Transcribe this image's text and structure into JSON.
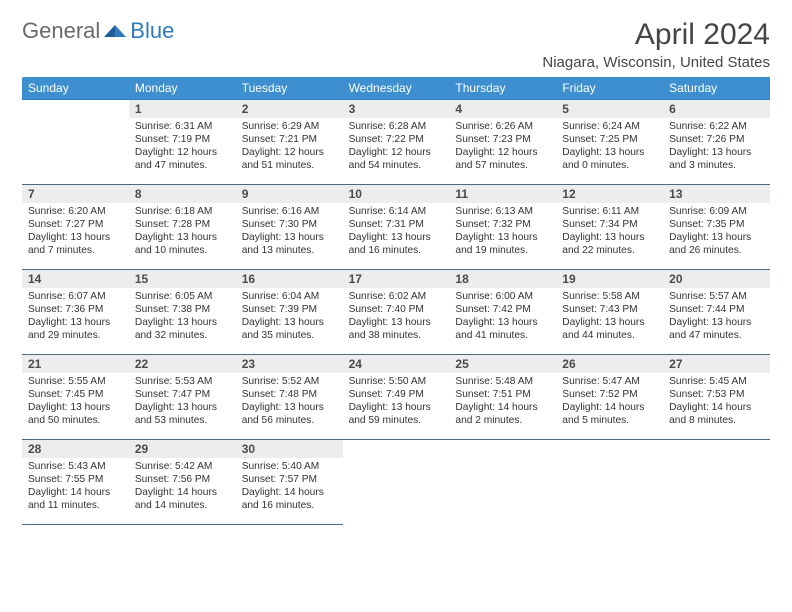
{
  "logo": {
    "word1": "General",
    "word2": "Blue"
  },
  "header": {
    "month": "April 2024",
    "location": "Niagara, Wisconsin, United States"
  },
  "colors": {
    "header_bg": "#3e8fcf",
    "header_text": "#ffffff",
    "border": "#4a6a88",
    "daynum_bg": "#eceded",
    "daynum_text": "#4a4a4a",
    "body_text": "#333333",
    "logo_gray": "#6a6a6a",
    "logo_blue": "#2f7bbf",
    "title_color": "#454545"
  },
  "weekdays": [
    "Sunday",
    "Monday",
    "Tuesday",
    "Wednesday",
    "Thursday",
    "Friday",
    "Saturday"
  ],
  "days": [
    {
      "n": 1,
      "sunrise": "6:31 AM",
      "sunset": "7:19 PM",
      "daylight": "12 hours and 47 minutes."
    },
    {
      "n": 2,
      "sunrise": "6:29 AM",
      "sunset": "7:21 PM",
      "daylight": "12 hours and 51 minutes."
    },
    {
      "n": 3,
      "sunrise": "6:28 AM",
      "sunset": "7:22 PM",
      "daylight": "12 hours and 54 minutes."
    },
    {
      "n": 4,
      "sunrise": "6:26 AM",
      "sunset": "7:23 PM",
      "daylight": "12 hours and 57 minutes."
    },
    {
      "n": 5,
      "sunrise": "6:24 AM",
      "sunset": "7:25 PM",
      "daylight": "13 hours and 0 minutes."
    },
    {
      "n": 6,
      "sunrise": "6:22 AM",
      "sunset": "7:26 PM",
      "daylight": "13 hours and 3 minutes."
    },
    {
      "n": 7,
      "sunrise": "6:20 AM",
      "sunset": "7:27 PM",
      "daylight": "13 hours and 7 minutes."
    },
    {
      "n": 8,
      "sunrise": "6:18 AM",
      "sunset": "7:28 PM",
      "daylight": "13 hours and 10 minutes."
    },
    {
      "n": 9,
      "sunrise": "6:16 AM",
      "sunset": "7:30 PM",
      "daylight": "13 hours and 13 minutes."
    },
    {
      "n": 10,
      "sunrise": "6:14 AM",
      "sunset": "7:31 PM",
      "daylight": "13 hours and 16 minutes."
    },
    {
      "n": 11,
      "sunrise": "6:13 AM",
      "sunset": "7:32 PM",
      "daylight": "13 hours and 19 minutes."
    },
    {
      "n": 12,
      "sunrise": "6:11 AM",
      "sunset": "7:34 PM",
      "daylight": "13 hours and 22 minutes."
    },
    {
      "n": 13,
      "sunrise": "6:09 AM",
      "sunset": "7:35 PM",
      "daylight": "13 hours and 26 minutes."
    },
    {
      "n": 14,
      "sunrise": "6:07 AM",
      "sunset": "7:36 PM",
      "daylight": "13 hours and 29 minutes."
    },
    {
      "n": 15,
      "sunrise": "6:05 AM",
      "sunset": "7:38 PM",
      "daylight": "13 hours and 32 minutes."
    },
    {
      "n": 16,
      "sunrise": "6:04 AM",
      "sunset": "7:39 PM",
      "daylight": "13 hours and 35 minutes."
    },
    {
      "n": 17,
      "sunrise": "6:02 AM",
      "sunset": "7:40 PM",
      "daylight": "13 hours and 38 minutes."
    },
    {
      "n": 18,
      "sunrise": "6:00 AM",
      "sunset": "7:42 PM",
      "daylight": "13 hours and 41 minutes."
    },
    {
      "n": 19,
      "sunrise": "5:58 AM",
      "sunset": "7:43 PM",
      "daylight": "13 hours and 44 minutes."
    },
    {
      "n": 20,
      "sunrise": "5:57 AM",
      "sunset": "7:44 PM",
      "daylight": "13 hours and 47 minutes."
    },
    {
      "n": 21,
      "sunrise": "5:55 AM",
      "sunset": "7:45 PM",
      "daylight": "13 hours and 50 minutes."
    },
    {
      "n": 22,
      "sunrise": "5:53 AM",
      "sunset": "7:47 PM",
      "daylight": "13 hours and 53 minutes."
    },
    {
      "n": 23,
      "sunrise": "5:52 AM",
      "sunset": "7:48 PM",
      "daylight": "13 hours and 56 minutes."
    },
    {
      "n": 24,
      "sunrise": "5:50 AM",
      "sunset": "7:49 PM",
      "daylight": "13 hours and 59 minutes."
    },
    {
      "n": 25,
      "sunrise": "5:48 AM",
      "sunset": "7:51 PM",
      "daylight": "14 hours and 2 minutes."
    },
    {
      "n": 26,
      "sunrise": "5:47 AM",
      "sunset": "7:52 PM",
      "daylight": "14 hours and 5 minutes."
    },
    {
      "n": 27,
      "sunrise": "5:45 AM",
      "sunset": "7:53 PM",
      "daylight": "14 hours and 8 minutes."
    },
    {
      "n": 28,
      "sunrise": "5:43 AM",
      "sunset": "7:55 PM",
      "daylight": "14 hours and 11 minutes."
    },
    {
      "n": 29,
      "sunrise": "5:42 AM",
      "sunset": "7:56 PM",
      "daylight": "14 hours and 14 minutes."
    },
    {
      "n": 30,
      "sunrise": "5:40 AM",
      "sunset": "7:57 PM",
      "daylight": "14 hours and 16 minutes."
    }
  ],
  "layout": {
    "first_weekday_offset": 1,
    "labels": {
      "sunrise": "Sunrise: ",
      "sunset": "Sunset: ",
      "daylight": "Daylight: "
    }
  }
}
